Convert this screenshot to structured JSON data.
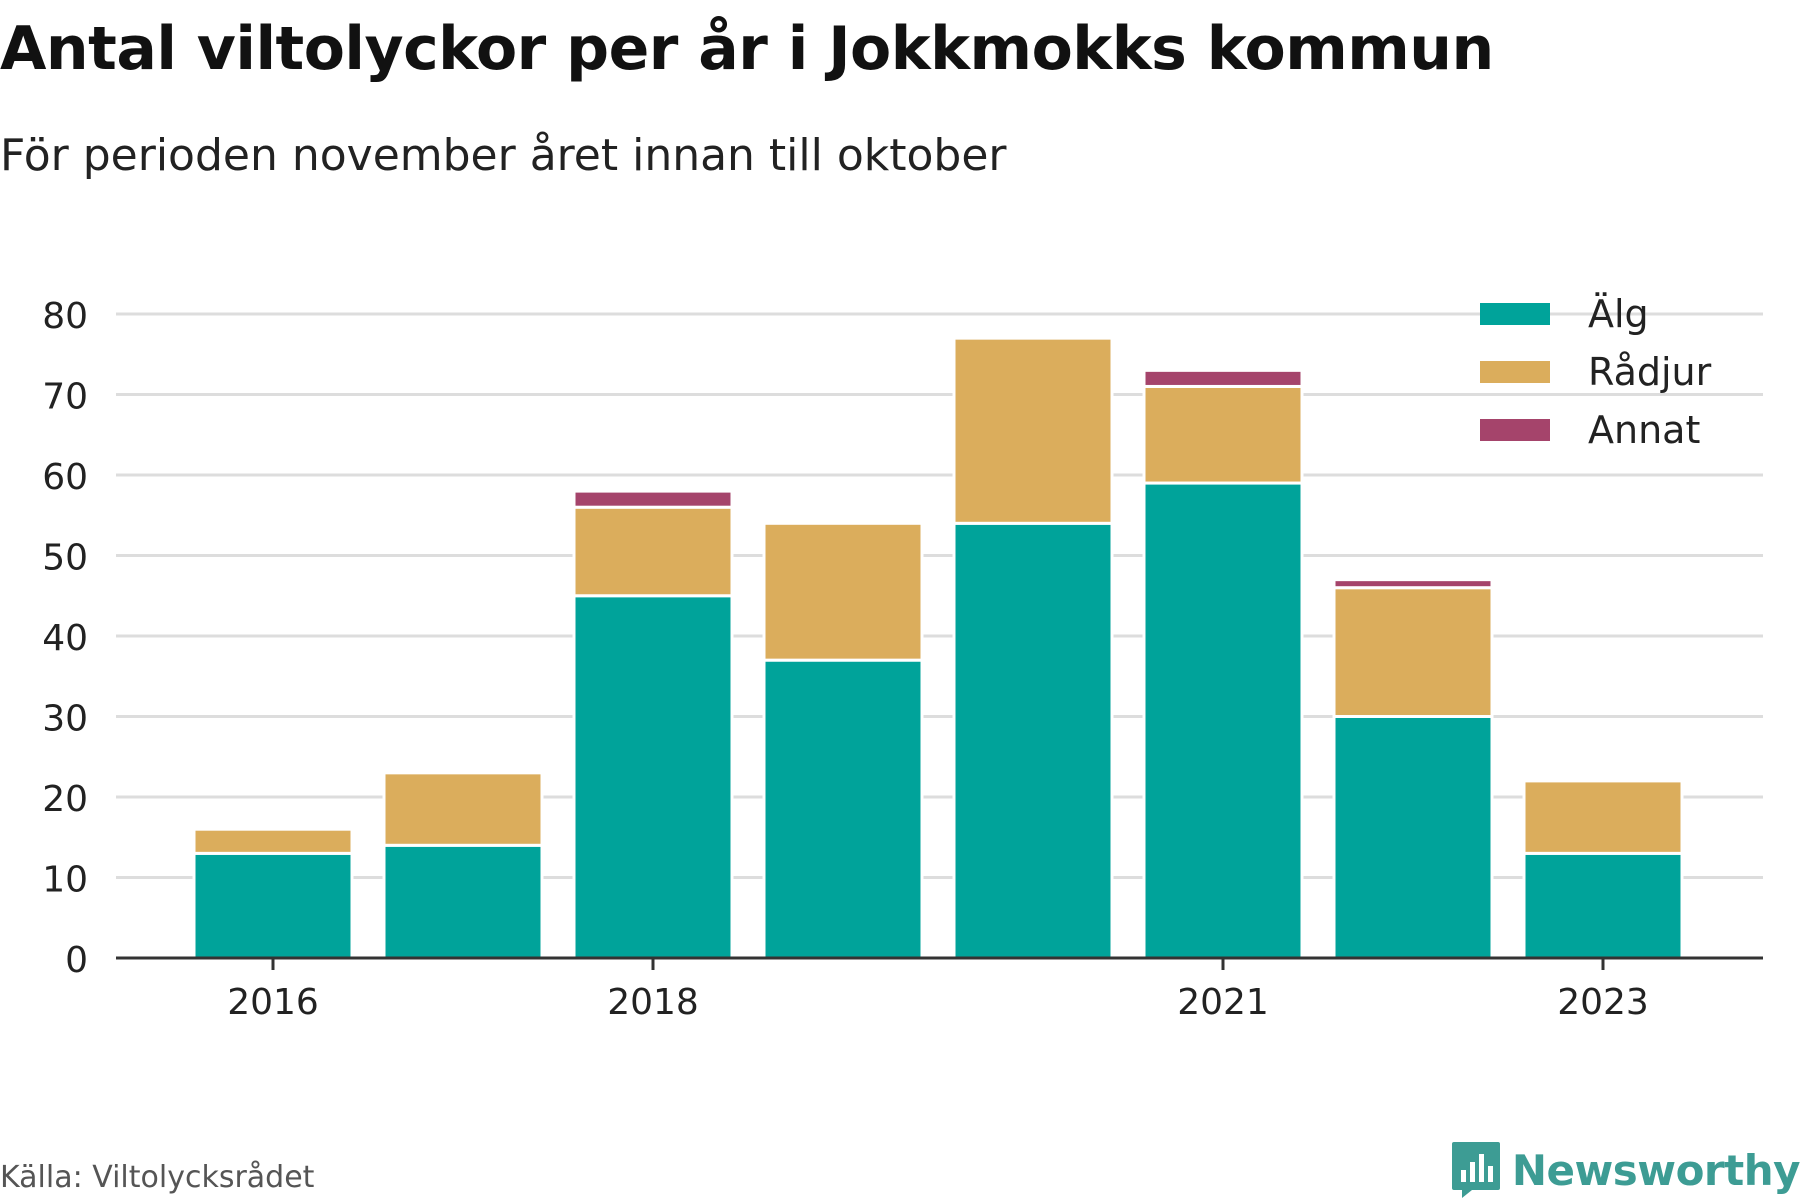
{
  "title": "Antal viltolyckor per år i Jokkmokks kommun",
  "subtitle": "För perioden november året innan till oktober",
  "source": "Källa: Viltolycksrådet",
  "brand": "Newsworthy",
  "colors": {
    "alg": "#00a39a",
    "radjur": "#dbad5c",
    "annat": "#a5446b",
    "grid": "#dddddd",
    "axis": "#333333",
    "brand": "#3d9c94"
  },
  "legend": [
    {
      "label": "Älg",
      "color": "#00a39a"
    },
    {
      "label": "Rådjur",
      "color": "#dbad5c"
    },
    {
      "label": "Annat",
      "color": "#a5446b"
    }
  ],
  "chart_data": {
    "type": "bar",
    "stacked": true,
    "x": [
      2016,
      2017,
      2018,
      2019,
      2020,
      2021,
      2022,
      2023
    ],
    "x_tick_labels": [
      "2016",
      "2018",
      "2021",
      "2023"
    ],
    "y_ticks": [
      0,
      10,
      20,
      30,
      40,
      50,
      60,
      70,
      80
    ],
    "ylim": [
      0,
      80
    ],
    "grid": true,
    "legend_position": "top-right",
    "series": [
      {
        "name": "Älg",
        "color": "#00a39a",
        "values": [
          13,
          14,
          45,
          37,
          54,
          59,
          30,
          13
        ]
      },
      {
        "name": "Rådjur",
        "color": "#dbad5c",
        "values": [
          3,
          9,
          11,
          17,
          23,
          12,
          16,
          9
        ]
      },
      {
        "name": "Annat",
        "color": "#a5446b",
        "values": [
          0,
          0,
          2,
          0,
          0,
          2,
          1,
          0
        ]
      }
    ]
  }
}
